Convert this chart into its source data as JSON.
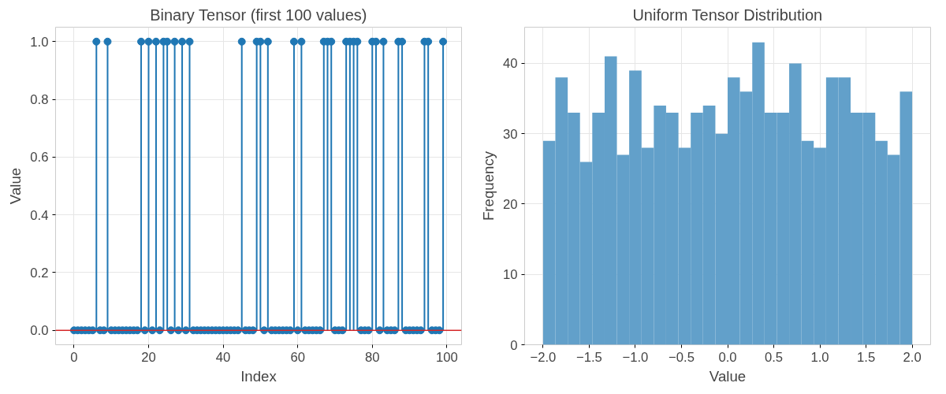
{
  "chart_data": [
    {
      "type": "lollipop",
      "title": "Binary Tensor (first 100 values)",
      "xlabel": "Index",
      "ylabel": "Value",
      "x": [
        0,
        1,
        2,
        3,
        4,
        5,
        6,
        7,
        8,
        9,
        10,
        11,
        12,
        13,
        14,
        15,
        16,
        17,
        18,
        19,
        20,
        21,
        22,
        23,
        24,
        25,
        26,
        27,
        28,
        29,
        30,
        31,
        32,
        33,
        34,
        35,
        36,
        37,
        38,
        39,
        40,
        41,
        42,
        43,
        44,
        45,
        46,
        47,
        48,
        49,
        50,
        51,
        52,
        53,
        54,
        55,
        56,
        57,
        58,
        59,
        60,
        61,
        62,
        63,
        64,
        65,
        66,
        67,
        68,
        69,
        70,
        71,
        72,
        73,
        74,
        75,
        76,
        77,
        78,
        79,
        80,
        81,
        82,
        83,
        84,
        85,
        86,
        87,
        88,
        89,
        90,
        91,
        92,
        93,
        94,
        95,
        96,
        97,
        98,
        99
      ],
      "series": [
        {
          "color": "#1f77b4",
          "values": [
            0,
            0,
            0,
            0,
            0,
            0,
            1,
            0,
            0,
            1,
            0,
            0,
            0,
            0,
            0,
            0,
            0,
            0,
            1,
            0,
            1,
            0,
            1,
            0,
            1,
            1,
            0,
            1,
            0,
            1,
            0,
            1,
            0,
            0,
            0,
            0,
            0,
            0,
            0,
            0,
            0,
            0,
            0,
            0,
            0,
            1,
            0,
            0,
            0,
            1,
            1,
            0,
            1,
            0,
            0,
            0,
            0,
            0,
            0,
            1,
            0,
            1,
            0,
            0,
            0,
            0,
            0,
            1,
            1,
            1,
            0,
            0,
            0,
            1,
            1,
            1,
            1,
            0,
            0,
            0,
            1,
            1,
            0,
            1,
            0,
            0,
            0,
            1,
            1,
            0,
            0,
            0,
            0,
            0,
            1,
            1,
            0,
            0,
            0,
            1
          ]
        }
      ],
      "marker": "circle",
      "ref_lines": [
        {
          "axis": "y",
          "value": 0,
          "color": "#d62728"
        }
      ],
      "xlim": [
        -4.95,
        103.95
      ],
      "ylim": [
        -0.05,
        1.05
      ],
      "xticks": [
        0,
        20,
        40,
        60,
        80,
        100
      ],
      "yticks": [
        {
          "value": 0,
          "label": "0.0"
        },
        0.2,
        0.4,
        0.6,
        0.8,
        {
          "value": 1,
          "label": "1.0"
        }
      ],
      "grid": true
    },
    {
      "type": "histogram",
      "title": "Uniform Tensor Distribution",
      "xlabel": "Value",
      "ylabel": "Frequency",
      "bins": [
        -2,
        -1.867,
        -1.733,
        -1.6,
        -1.467,
        -1.333,
        -1.2,
        -1.067,
        -0.933,
        -0.8,
        -0.667,
        -0.533,
        -0.4,
        -0.267,
        -0.133,
        0,
        0.133,
        0.267,
        0.4,
        0.533,
        0.667,
        0.8,
        0.933,
        1.067,
        1.2,
        1.333,
        1.467,
        1.6,
        1.733,
        1.867,
        2
      ],
      "values": [
        29,
        38,
        33,
        26,
        33,
        41,
        27,
        39,
        28,
        34,
        33,
        28,
        33,
        34,
        30,
        38,
        36,
        43,
        33,
        33,
        40,
        29,
        28,
        38,
        38,
        33,
        33,
        29,
        27,
        36
      ],
      "color": "#62a0ca",
      "xlim": [
        -2.2,
        2.2
      ],
      "ylim": [
        0,
        45.15
      ],
      "xticks": [
        {
          "value": -2,
          "label": "−2.0"
        },
        {
          "value": -1.5,
          "label": "−1.5"
        },
        {
          "value": -1,
          "label": "−1.0"
        },
        {
          "value": -0.5,
          "label": "−0.5"
        },
        {
          "value": 0,
          "label": "0.0"
        },
        0.5,
        {
          "value": 1,
          "label": "1.0"
        },
        1.5,
        {
          "value": 2,
          "label": "2.0"
        }
      ],
      "yticks": [
        0,
        10,
        20,
        30,
        40
      ],
      "grid": true
    }
  ]
}
